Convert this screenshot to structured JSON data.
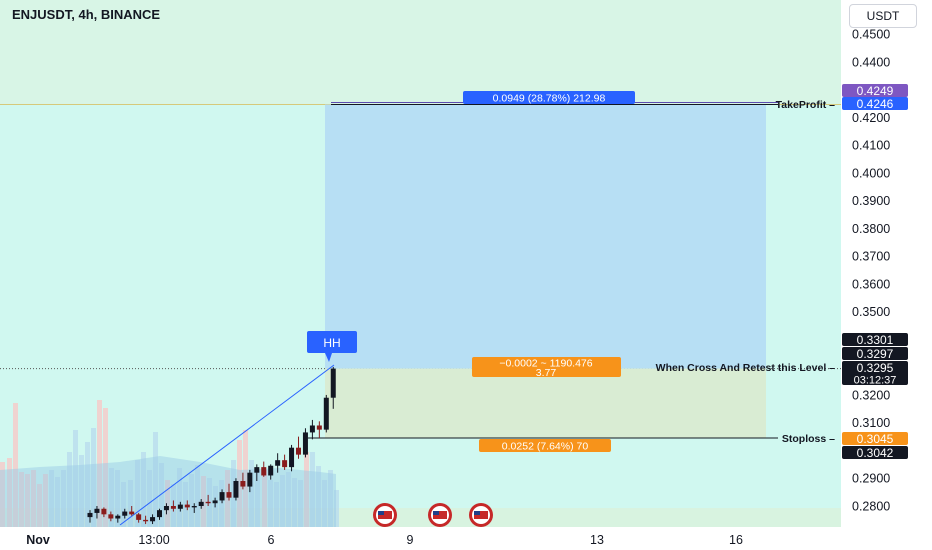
{
  "header": {
    "symbol": "ENJUSDT, 4h, BINANCE",
    "currency": "USDT"
  },
  "chart_data": {
    "type": "candlestick",
    "yaxis_labels": [
      "0.4500",
      "0.4400",
      "0.4300",
      "0.4200",
      "0.4100",
      "0.4000",
      "0.3900",
      "0.3800",
      "0.3700",
      "0.3600",
      "0.3500",
      "0.3400",
      "0.3300",
      "0.3200",
      "0.3100",
      "0.3000",
      "0.2900",
      "0.2800"
    ],
    "ylim": [
      0.274,
      0.4565
    ],
    "xaxis_labels": [
      "Nov",
      "13:00",
      "6",
      "9",
      "13",
      "16"
    ],
    "price_tags": [
      {
        "label": "0.4249",
        "value": 0.4249,
        "color": "#7e57c2"
      },
      {
        "label": "0.4246",
        "value": 0.4246,
        "color": "#2962ff"
      },
      {
        "label": "0.3301",
        "value": 0.3301,
        "color": "#131722"
      },
      {
        "label": "0.3297",
        "value": 0.3297,
        "color": "#131722"
      },
      {
        "label": "0.3295",
        "value": 0.3295,
        "color": "#131722",
        "sub": "03:12:37"
      },
      {
        "label": "0.3045",
        "value": 0.3045,
        "color": "#f7931a"
      },
      {
        "label": "0.3042",
        "value": 0.3042,
        "color": "#131722"
      }
    ],
    "levels": {
      "take_profit": {
        "label": "TakeProfit",
        "value": 0.4246
      },
      "entry": {
        "label": "When Cross And Retest this Level",
        "value": 0.3295
      },
      "stop_loss": {
        "label": "Stoploss",
        "value": 0.3045
      }
    },
    "position_labels": {
      "target": "0.0949 (28.78%) 212.98",
      "entry_line1": "−0.0002 ~ 1190.476",
      "entry_line2": "3.77",
      "stop": "0.0252 (7.64%) 70"
    },
    "annotation": "HH",
    "candles": [
      {
        "o": 0.276,
        "h": 0.2785,
        "l": 0.274,
        "c": 0.2775
      },
      {
        "o": 0.2775,
        "h": 0.28,
        "l": 0.2755,
        "c": 0.279
      },
      {
        "o": 0.279,
        "h": 0.2795,
        "l": 0.276,
        "c": 0.277
      },
      {
        "o": 0.277,
        "h": 0.278,
        "l": 0.2745,
        "c": 0.2755
      },
      {
        "o": 0.2755,
        "h": 0.277,
        "l": 0.274,
        "c": 0.2765
      },
      {
        "o": 0.2765,
        "h": 0.279,
        "l": 0.2755,
        "c": 0.278
      },
      {
        "o": 0.278,
        "h": 0.28,
        "l": 0.2765,
        "c": 0.277
      },
      {
        "o": 0.277,
        "h": 0.2775,
        "l": 0.274,
        "c": 0.275
      },
      {
        "o": 0.275,
        "h": 0.2765,
        "l": 0.2735,
        "c": 0.2745
      },
      {
        "o": 0.2745,
        "h": 0.277,
        "l": 0.2735,
        "c": 0.276
      },
      {
        "o": 0.276,
        "h": 0.279,
        "l": 0.275,
        "c": 0.2785
      },
      {
        "o": 0.2785,
        "h": 0.281,
        "l": 0.277,
        "c": 0.28
      },
      {
        "o": 0.28,
        "h": 0.282,
        "l": 0.278,
        "c": 0.279
      },
      {
        "o": 0.279,
        "h": 0.2815,
        "l": 0.278,
        "c": 0.2805
      },
      {
        "o": 0.2805,
        "h": 0.282,
        "l": 0.2785,
        "c": 0.2795
      },
      {
        "o": 0.2795,
        "h": 0.281,
        "l": 0.2775,
        "c": 0.28
      },
      {
        "o": 0.28,
        "h": 0.2825,
        "l": 0.279,
        "c": 0.2815
      },
      {
        "o": 0.2815,
        "h": 0.284,
        "l": 0.28,
        "c": 0.281
      },
      {
        "o": 0.281,
        "h": 0.283,
        "l": 0.2795,
        "c": 0.282
      },
      {
        "o": 0.282,
        "h": 0.286,
        "l": 0.281,
        "c": 0.285
      },
      {
        "o": 0.285,
        "h": 0.288,
        "l": 0.282,
        "c": 0.283
      },
      {
        "o": 0.283,
        "h": 0.29,
        "l": 0.282,
        "c": 0.289
      },
      {
        "o": 0.289,
        "h": 0.292,
        "l": 0.286,
        "c": 0.287
      },
      {
        "o": 0.287,
        "h": 0.293,
        "l": 0.285,
        "c": 0.292
      },
      {
        "o": 0.292,
        "h": 0.295,
        "l": 0.289,
        "c": 0.294
      },
      {
        "o": 0.294,
        "h": 0.296,
        "l": 0.2905,
        "c": 0.291
      },
      {
        "o": 0.291,
        "h": 0.295,
        "l": 0.2895,
        "c": 0.2945
      },
      {
        "o": 0.2945,
        "h": 0.299,
        "l": 0.292,
        "c": 0.2965
      },
      {
        "o": 0.2965,
        "h": 0.2985,
        "l": 0.293,
        "c": 0.294
      },
      {
        "o": 0.294,
        "h": 0.302,
        "l": 0.2925,
        "c": 0.301
      },
      {
        "o": 0.301,
        "h": 0.305,
        "l": 0.297,
        "c": 0.2985
      },
      {
        "o": 0.2985,
        "h": 0.308,
        "l": 0.2975,
        "c": 0.3065
      },
      {
        "o": 0.3065,
        "h": 0.311,
        "l": 0.304,
        "c": 0.309
      },
      {
        "o": 0.309,
        "h": 0.3105,
        "l": 0.3045,
        "c": 0.3075
      },
      {
        "o": 0.3075,
        "h": 0.32,
        "l": 0.3065,
        "c": 0.319
      },
      {
        "o": 0.319,
        "h": 0.3301,
        "l": 0.315,
        "c": 0.3295
      }
    ]
  }
}
